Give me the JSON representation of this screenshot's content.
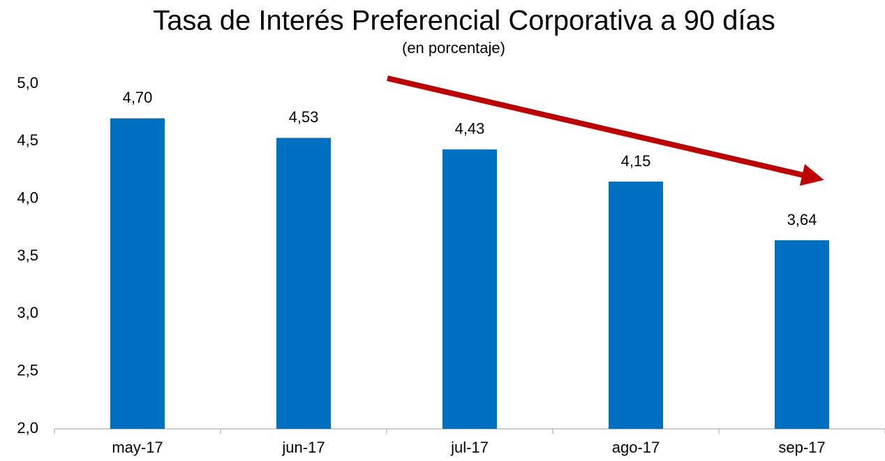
{
  "chart_data": {
    "type": "bar",
    "title": "Tasa de Interés Preferencial Corporativa a 90 días",
    "subtitle": "(en porcentaje)",
    "categories": [
      "may-17",
      "jun-17",
      "jul-17",
      "ago-17",
      "sep-17"
    ],
    "values": [
      4.7,
      4.53,
      4.43,
      4.15,
      3.64
    ],
    "value_labels": [
      "4,70",
      "4,53",
      "4,43",
      "4,15",
      "3,64"
    ],
    "color": "#0070c0",
    "ylim": [
      2.0,
      5.0
    ],
    "yticks": [
      {
        "value": 2.0,
        "label": "2,0"
      },
      {
        "value": 2.5,
        "label": "2,5"
      },
      {
        "value": 3.0,
        "label": "3,0"
      },
      {
        "value": 3.5,
        "label": "3,5"
      },
      {
        "value": 4.0,
        "label": "4,0"
      },
      {
        "value": 4.5,
        "label": "4,5"
      },
      {
        "value": 5.0,
        "label": "5,0"
      }
    ],
    "grid": false
  }
}
